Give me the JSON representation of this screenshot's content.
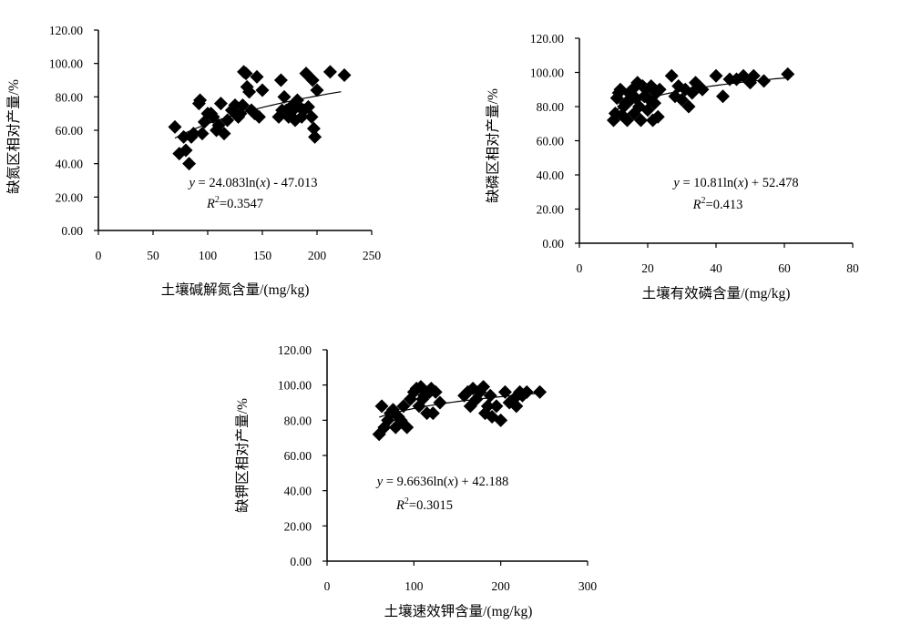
{
  "chart_data": [
    {
      "type": "scatter",
      "xlabel": "土壤碱解氮含量/(mg/kg)",
      "ylabel": "缺氮区相对产量/%",
      "xlim": [
        0,
        250
      ],
      "ylim": [
        0,
        120
      ],
      "xticks": [
        "0",
        "50",
        "100",
        "150",
        "200",
        "250"
      ],
      "yticks": [
        "0.00",
        "20.00",
        "40.00",
        "60.00",
        "80.00",
        "100.00",
        "120.00"
      ],
      "equation": "y = 24.083ln(x) - 47.013",
      "r2": "R2=0.3547",
      "trendline": {
        "a": 24.083,
        "b": -47.013,
        "xmin": 70,
        "xmax": 222
      },
      "series": [
        {
          "x": [
            70,
            74,
            78,
            80,
            83,
            85,
            87,
            92,
            93,
            95,
            97,
            100,
            103,
            105,
            108,
            110,
            112,
            115,
            118,
            122,
            125,
            128,
            130,
            132,
            133,
            135,
            136,
            138,
            140,
            143,
            145,
            147,
            150,
            165,
            167,
            168,
            170,
            172,
            174,
            176,
            178,
            180,
            182,
            184,
            186,
            188,
            190,
            192,
            195,
            196,
            197,
            198,
            200,
            212,
            225
          ],
          "y": [
            62,
            46,
            56,
            48,
            40,
            56,
            58,
            76,
            78,
            58,
            65,
            70,
            70,
            68,
            60,
            63,
            76,
            58,
            66,
            72,
            75,
            68,
            70,
            75,
            95,
            94,
            86,
            83,
            72,
            70,
            92,
            68,
            84,
            68,
            90,
            72,
            80,
            72,
            68,
            74,
            72,
            66,
            78,
            74,
            68,
            72,
            94,
            74,
            68,
            90,
            61,
            56,
            84,
            95,
            93
          ]
        }
      ]
    },
    {
      "type": "scatter",
      "xlabel": "土壤有效磷含量/(mg/kg)",
      "ylabel": "缺磷区相对产量/%",
      "xlim": [
        0,
        80
      ],
      "ylim": [
        0,
        120
      ],
      "xticks": [
        "0",
        "20",
        "40",
        "60",
        "80"
      ],
      "yticks": [
        "0.00",
        "20.00",
        "40.00",
        "60.00",
        "80.00",
        "100.00",
        "120.00"
      ],
      "equation": "y = 10.81ln(x) + 52.478",
      "r2": "R2=0.413",
      "trendline": {
        "a": 10.81,
        "b": 52.478,
        "xmin": 10,
        "xmax": 61
      },
      "series": [
        {
          "x": [
            10,
            10.5,
            11,
            11.5,
            12,
            12.5,
            13,
            13.5,
            14,
            14.5,
            15,
            15.5,
            16,
            16.5,
            17,
            17.5,
            18,
            18.5,
            19,
            19.5,
            20,
            20.5,
            21,
            21.5,
            22,
            22.5,
            23,
            23.5,
            27,
            28,
            29,
            30,
            31,
            32,
            33,
            34,
            35,
            36,
            40,
            42,
            44,
            46,
            48,
            50,
            51,
            54,
            61
          ],
          "y": [
            72,
            76,
            85,
            88,
            90,
            75,
            80,
            82,
            72,
            88,
            84,
            90,
            76,
            85,
            94,
            80,
            72,
            92,
            86,
            90,
            78,
            84,
            92,
            72,
            82,
            88,
            74,
            90,
            98,
            86,
            92,
            84,
            90,
            80,
            88,
            94,
            92,
            90,
            98,
            86,
            96,
            96,
            98,
            94,
            98,
            95,
            99
          ]
        }
      ]
    },
    {
      "type": "scatter",
      "xlabel": "土壤速效钾含量/(mg/kg)",
      "ylabel": "缺钾区相对产量/%",
      "xlim": [
        0,
        300
      ],
      "ylim": [
        0,
        120
      ],
      "xticks": [
        "0",
        "100",
        "200",
        "300"
      ],
      "yticks": [
        "0.00",
        "20.00",
        "40.00",
        "60.00",
        "80.00",
        "100.00",
        "120.00"
      ],
      "equation": "y = 9.6636ln(x) + 42.188",
      "r2": "R2=0.3015",
      "trendline": {
        "a": 9.6636,
        "b": 42.188,
        "xmin": 60,
        "xmax": 245
      },
      "series": [
        {
          "x": [
            60,
            63,
            66,
            70,
            73,
            76,
            79,
            82,
            85,
            88,
            92,
            96,
            100,
            103,
            106,
            108,
            110,
            112,
            115,
            118,
            120,
            122,
            125,
            130,
            158,
            162,
            165,
            168,
            172,
            176,
            180,
            182,
            185,
            188,
            190,
            195,
            200,
            205,
            210,
            215,
            218,
            222,
            225,
            230,
            245
          ],
          "y": [
            72,
            88,
            76,
            80,
            84,
            86,
            76,
            82,
            80,
            88,
            76,
            92,
            96,
            98,
            88,
            99,
            92,
            94,
            84,
            96,
            98,
            84,
            96,
            90,
            94,
            96,
            88,
            98,
            92,
            96,
            99,
            84,
            88,
            94,
            82,
            88,
            80,
            96,
            90,
            92,
            88,
            96,
            94,
            96,
            96
          ]
        }
      ]
    }
  ]
}
